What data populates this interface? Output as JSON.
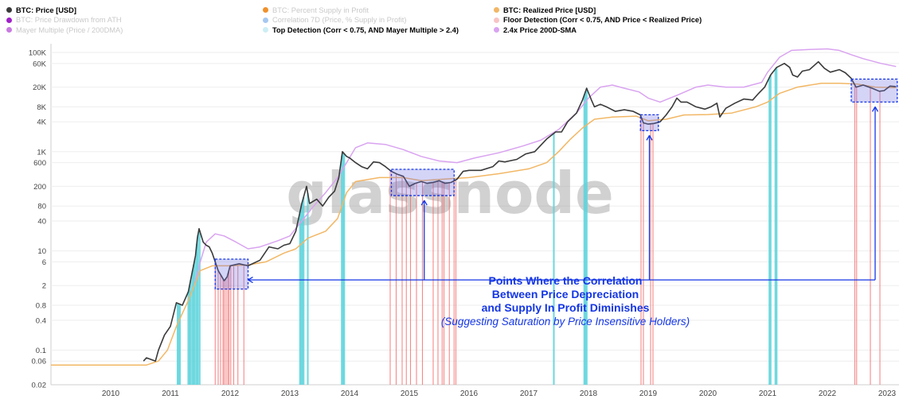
{
  "legend": {
    "col1": [
      {
        "label": "BTC: Price [USD]",
        "color": "#3a3a3a",
        "dim": false
      },
      {
        "label": "BTC: Price Drawdown from ATH",
        "color": "#a020c8",
        "dim": true
      },
      {
        "label": "Mayer Multiple (Price / 200DMA)",
        "color": "#c87ae0",
        "dim": true
      }
    ],
    "col2": [
      {
        "label": "BTC: Percent Supply in Profit",
        "color": "#f0902a",
        "dim": true
      },
      {
        "label": "Correlation 7D (Price, % Supply in Profit)",
        "color": "#a6c8f0",
        "dim": true
      },
      {
        "label": "Top Detection (Corr < 0.75, AND Mayer Multiple > 2.4)",
        "color": "#cdeef5",
        "dim": false
      }
    ],
    "col3": [
      {
        "label": "BTC: Realized Price [USD]",
        "color": "#f2b765",
        "dim": false
      },
      {
        "label": "Floor Detection (Corr < 0.75, AND Price < Realized Price)",
        "color": "#f8c4c4",
        "dim": false
      },
      {
        "label": "2.4x Price 200D-SMA",
        "color": "#d9a3f0",
        "dim": false
      }
    ]
  },
  "watermark": "glassnode",
  "annotation": {
    "line1": "Points Where the Correlation",
    "line2": "Between Price Depreciation",
    "line3": "and Supply In Profit Diminishes",
    "line4": "(Suggesting Saturation by Price Insensitive Holders)"
  },
  "colors": {
    "price": "#3a3a3a",
    "realized": "#f2b765",
    "sma": "#d9a3f0",
    "top": "#5fd3dc",
    "floor": "#f26b6b",
    "box_fill": "#6f6fe6",
    "box_stroke": "#1436e6",
    "annotation": "#1436e6",
    "axis": "#444444"
  },
  "chart_data": {
    "type": "line",
    "title": "",
    "y_scale": "log",
    "ylim": [
      0.02,
      150000
    ],
    "xlim": [
      2009.0,
      2023.2
    ],
    "y_ticks": [
      {
        "v": 100000,
        "label": "100K"
      },
      {
        "v": 60000,
        "label": "60K"
      },
      {
        "v": 20000,
        "label": "20K"
      },
      {
        "v": 8000,
        "label": "8K"
      },
      {
        "v": 4000,
        "label": "4K"
      },
      {
        "v": 1000,
        "label": "1K"
      },
      {
        "v": 600,
        "label": "600"
      },
      {
        "v": 200,
        "label": "200"
      },
      {
        "v": 80,
        "label": "80"
      },
      {
        "v": 40,
        "label": "40"
      },
      {
        "v": 10,
        "label": "10"
      },
      {
        "v": 6,
        "label": "6"
      },
      {
        "v": 2,
        "label": "2"
      },
      {
        "v": 0.8,
        "label": "0.8"
      },
      {
        "v": 0.4,
        "label": "0.4"
      },
      {
        "v": 0.1,
        "label": "0.1"
      },
      {
        "v": 0.06,
        "label": "0.06"
      },
      {
        "v": 0.02,
        "label": "0.02"
      }
    ],
    "x_ticks": [
      {
        "v": 2010.0,
        "label": "2010"
      },
      {
        "v": 2011.0,
        "label": "2011"
      },
      {
        "v": 2012.0,
        "label": "2012"
      },
      {
        "v": 2013.0,
        "label": "2013"
      },
      {
        "v": 2014.0,
        "label": "2014"
      },
      {
        "v": 2015.0,
        "label": "2015"
      },
      {
        "v": 2016.0,
        "label": "2016"
      },
      {
        "v": 2017.0,
        "label": "2017"
      },
      {
        "v": 2018.0,
        "label": "2018"
      },
      {
        "v": 2019.0,
        "label": "2019"
      },
      {
        "v": 2020.0,
        "label": "2020"
      },
      {
        "v": 2021.0,
        "label": "2021"
      },
      {
        "v": 2022.0,
        "label": "2022"
      },
      {
        "v": 2023.0,
        "label": "2023"
      }
    ],
    "series": [
      {
        "name": "BTC: Price [USD]",
        "color": "#3a3a3a",
        "points": [
          [
            2010.55,
            0.06
          ],
          [
            2010.6,
            0.07
          ],
          [
            2010.75,
            0.06
          ],
          [
            2010.8,
            0.1
          ],
          [
            2010.9,
            0.2
          ],
          [
            2011.0,
            0.3
          ],
          [
            2011.1,
            0.9
          ],
          [
            2011.2,
            0.8
          ],
          [
            2011.3,
            1.5
          ],
          [
            2011.35,
            3
          ],
          [
            2011.42,
            8
          ],
          [
            2011.45,
            18
          ],
          [
            2011.48,
            28
          ],
          [
            2011.55,
            15
          ],
          [
            2011.6,
            13
          ],
          [
            2011.65,
            12
          ],
          [
            2011.7,
            9
          ],
          [
            2011.8,
            4
          ],
          [
            2011.9,
            2.5
          ],
          [
            2011.95,
            3
          ],
          [
            2012.0,
            5
          ],
          [
            2012.15,
            5.5
          ],
          [
            2012.3,
            5
          ],
          [
            2012.5,
            6.5
          ],
          [
            2012.65,
            12
          ],
          [
            2012.8,
            11
          ],
          [
            2012.9,
            13
          ],
          [
            2013.0,
            14
          ],
          [
            2013.1,
            25
          ],
          [
            2013.2,
            90
          ],
          [
            2013.28,
            200
          ],
          [
            2013.33,
            90
          ],
          [
            2013.45,
            110
          ],
          [
            2013.55,
            80
          ],
          [
            2013.65,
            120
          ],
          [
            2013.75,
            160
          ],
          [
            2013.82,
            300
          ],
          [
            2013.88,
            1000
          ],
          [
            2013.95,
            800
          ],
          [
            2014.0,
            750
          ],
          [
            2014.1,
            600
          ],
          [
            2014.2,
            500
          ],
          [
            2014.3,
            450
          ],
          [
            2014.4,
            620
          ],
          [
            2014.5,
            600
          ],
          [
            2014.6,
            500
          ],
          [
            2014.7,
            400
          ],
          [
            2014.8,
            350
          ],
          [
            2014.9,
            320
          ],
          [
            2015.0,
            200
          ],
          [
            2015.1,
            230
          ],
          [
            2015.2,
            250
          ],
          [
            2015.3,
            230
          ],
          [
            2015.4,
            240
          ],
          [
            2015.5,
            260
          ],
          [
            2015.6,
            230
          ],
          [
            2015.7,
            240
          ],
          [
            2015.8,
            280
          ],
          [
            2015.9,
            400
          ],
          [
            2016.0,
            420
          ],
          [
            2016.2,
            420
          ],
          [
            2016.4,
            500
          ],
          [
            2016.5,
            650
          ],
          [
            2016.6,
            620
          ],
          [
            2016.8,
            700
          ],
          [
            2016.95,
            900
          ],
          [
            2017.1,
            1000
          ],
          [
            2017.3,
            1800
          ],
          [
            2017.45,
            2500
          ],
          [
            2017.55,
            2500
          ],
          [
            2017.65,
            4000
          ],
          [
            2017.8,
            6000
          ],
          [
            2017.9,
            11000
          ],
          [
            2017.97,
            19000
          ],
          [
            2018.05,
            11000
          ],
          [
            2018.1,
            8000
          ],
          [
            2018.2,
            9000
          ],
          [
            2018.3,
            8000
          ],
          [
            2018.45,
            6500
          ],
          [
            2018.6,
            7000
          ],
          [
            2018.75,
            6500
          ],
          [
            2018.87,
            5500
          ],
          [
            2018.92,
            3800
          ],
          [
            2019.0,
            3600
          ],
          [
            2019.1,
            3700
          ],
          [
            2019.2,
            4000
          ],
          [
            2019.3,
            5500
          ],
          [
            2019.4,
            8000
          ],
          [
            2019.48,
            12000
          ],
          [
            2019.55,
            10000
          ],
          [
            2019.65,
            10000
          ],
          [
            2019.8,
            8000
          ],
          [
            2019.95,
            7200
          ],
          [
            2020.05,
            8000
          ],
          [
            2020.15,
            9500
          ],
          [
            2020.2,
            5000
          ],
          [
            2020.3,
            7500
          ],
          [
            2020.45,
            9500
          ],
          [
            2020.6,
            11500
          ],
          [
            2020.75,
            11000
          ],
          [
            2020.85,
            15000
          ],
          [
            2020.95,
            20000
          ],
          [
            2021.05,
            35000
          ],
          [
            2021.15,
            50000
          ],
          [
            2021.28,
            60000
          ],
          [
            2021.37,
            50000
          ],
          [
            2021.42,
            35000
          ],
          [
            2021.5,
            32000
          ],
          [
            2021.58,
            42000
          ],
          [
            2021.7,
            45000
          ],
          [
            2021.85,
            65000
          ],
          [
            2021.95,
            48000
          ],
          [
            2022.05,
            40000
          ],
          [
            2022.2,
            45000
          ],
          [
            2022.3,
            39000
          ],
          [
            2022.4,
            30000
          ],
          [
            2022.48,
            20000
          ],
          [
            2022.6,
            22000
          ],
          [
            2022.75,
            19000
          ],
          [
            2022.87,
            16500
          ],
          [
            2022.95,
            17000
          ],
          [
            2023.05,
            21000
          ],
          [
            2023.15,
            20500
          ]
        ]
      },
      {
        "name": "BTC: Realized Price [USD]",
        "color": "#f2b765",
        "points": [
          [
            2009.0,
            0.05
          ],
          [
            2010.5,
            0.05
          ],
          [
            2010.6,
            0.05
          ],
          [
            2010.8,
            0.06
          ],
          [
            2010.95,
            0.1
          ],
          [
            2011.1,
            0.3
          ],
          [
            2011.3,
            1
          ],
          [
            2011.5,
            4
          ],
          [
            2011.7,
            5
          ],
          [
            2012.0,
            5
          ],
          [
            2012.3,
            5.2
          ],
          [
            2012.6,
            6
          ],
          [
            2012.9,
            9
          ],
          [
            2013.1,
            11
          ],
          [
            2013.3,
            18
          ],
          [
            2013.6,
            25
          ],
          [
            2013.8,
            45
          ],
          [
            2013.95,
            150
          ],
          [
            2014.1,
            250
          ],
          [
            2014.5,
            300
          ],
          [
            2014.9,
            300
          ],
          [
            2015.2,
            260
          ],
          [
            2015.6,
            280
          ],
          [
            2016.0,
            300
          ],
          [
            2016.5,
            360
          ],
          [
            2017.0,
            450
          ],
          [
            2017.3,
            600
          ],
          [
            2017.5,
            1000
          ],
          [
            2017.7,
            1800
          ],
          [
            2017.9,
            3000
          ],
          [
            2018.1,
            4500
          ],
          [
            2018.4,
            5000
          ],
          [
            2018.8,
            5200
          ],
          [
            2019.0,
            4200
          ],
          [
            2019.3,
            4500
          ],
          [
            2019.6,
            5500
          ],
          [
            2020.0,
            5600
          ],
          [
            2020.4,
            6000
          ],
          [
            2020.8,
            8000
          ],
          [
            2021.0,
            10000
          ],
          [
            2021.2,
            15000
          ],
          [
            2021.5,
            20000
          ],
          [
            2021.9,
            24000
          ],
          [
            2022.2,
            24000
          ],
          [
            2022.5,
            23000
          ],
          [
            2022.8,
            20000
          ],
          [
            2023.15,
            19500
          ]
        ]
      },
      {
        "name": "2.4x Price 200D-SMA",
        "color": "#d9a3f0",
        "points": [
          [
            2011.4,
            2
          ],
          [
            2011.5,
            6
          ],
          [
            2011.6,
            15
          ],
          [
            2011.75,
            22
          ],
          [
            2011.9,
            20
          ],
          [
            2012.1,
            15
          ],
          [
            2012.3,
            11
          ],
          [
            2012.5,
            12
          ],
          [
            2012.8,
            16
          ],
          [
            2013.0,
            20
          ],
          [
            2013.2,
            40
          ],
          [
            2013.4,
            80
          ],
          [
            2013.6,
            150
          ],
          [
            2013.8,
            300
          ],
          [
            2013.95,
            600
          ],
          [
            2014.1,
            1200
          ],
          [
            2014.3,
            1500
          ],
          [
            2014.6,
            1400
          ],
          [
            2014.9,
            1100
          ],
          [
            2015.2,
            800
          ],
          [
            2015.5,
            650
          ],
          [
            2015.8,
            600
          ],
          [
            2016.1,
            750
          ],
          [
            2016.5,
            950
          ],
          [
            2016.9,
            1300
          ],
          [
            2017.2,
            1700
          ],
          [
            2017.5,
            2800
          ],
          [
            2017.8,
            6000
          ],
          [
            2018.0,
            12000
          ],
          [
            2018.2,
            20000
          ],
          [
            2018.4,
            22000
          ],
          [
            2018.6,
            19000
          ],
          [
            2018.85,
            16000
          ],
          [
            2019.0,
            12000
          ],
          [
            2019.2,
            10000
          ],
          [
            2019.5,
            14000
          ],
          [
            2019.8,
            20000
          ],
          [
            2020.0,
            22000
          ],
          [
            2020.3,
            20000
          ],
          [
            2020.6,
            20000
          ],
          [
            2020.9,
            25000
          ],
          [
            2021.0,
            40000
          ],
          [
            2021.2,
            80000
          ],
          [
            2021.4,
            110000
          ],
          [
            2021.7,
            115000
          ],
          [
            2022.0,
            118000
          ],
          [
            2022.2,
            110000
          ],
          [
            2022.4,
            90000
          ],
          [
            2022.6,
            75000
          ],
          [
            2022.9,
            60000
          ],
          [
            2023.15,
            52000
          ]
        ]
      }
    ],
    "top_detection_years": [
      2011.12,
      2011.14,
      2011.16,
      2011.3,
      2011.32,
      2011.34,
      2011.37,
      2011.39,
      2011.41,
      2011.44,
      2011.46,
      2011.49,
      2013.17,
      2013.19,
      2013.21,
      2013.23,
      2013.3,
      2013.87,
      2013.89,
      2013.91,
      2017.42,
      2017.93,
      2017.95,
      2017.97,
      2021.03,
      2021.05,
      2021.13,
      2021.15
    ],
    "floor_detection_years": [
      2011.75,
      2011.8,
      2011.84,
      2011.88,
      2011.9,
      2011.93,
      2011.96,
      2011.98,
      2012.01,
      2012.06,
      2012.13,
      2012.23,
      2014.68,
      2014.78,
      2014.88,
      2014.95,
      2015.02,
      2015.12,
      2015.22,
      2015.4,
      2015.48,
      2015.55,
      2015.58,
      2015.67,
      2015.75,
      2015.78,
      2018.88,
      2018.92,
      2019.04,
      2019.08,
      2022.46,
      2022.49,
      2022.72,
      2022.88
    ],
    "highlight_boxes": [
      {
        "x0": 2011.75,
        "x1": 2012.3,
        "y0": 1.7,
        "y1": 6.8
      },
      {
        "x0": 2014.7,
        "x1": 2015.75,
        "y0": 130,
        "y1": 440
      },
      {
        "x0": 2018.87,
        "x1": 2019.17,
        "y0": 2650,
        "y1": 5550
      },
      {
        "x0": 2022.4,
        "x1": 2023.17,
        "y0": 10000,
        "y1": 29000
      }
    ],
    "pointer_xs": [
      2012.3,
      2015.25,
      2019.02,
      2022.8
    ],
    "pointer_line_y": 2.6
  }
}
